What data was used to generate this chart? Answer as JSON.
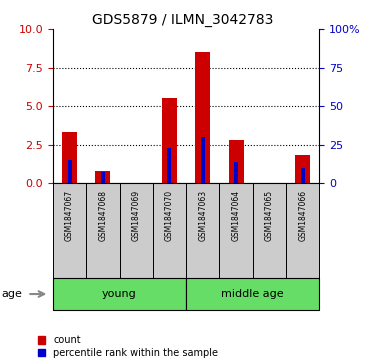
{
  "title": "GDS5879 / ILMN_3042783",
  "samples": [
    "GSM1847067",
    "GSM1847068",
    "GSM1847069",
    "GSM1847070",
    "GSM1847063",
    "GSM1847064",
    "GSM1847065",
    "GSM1847066"
  ],
  "count_values": [
    3.35,
    0.82,
    0.0,
    5.55,
    8.5,
    2.82,
    0.0,
    1.82
  ],
  "percentile_values_scaled": [
    1.5,
    0.75,
    0.0,
    2.3,
    3.0,
    1.4,
    0.0,
    1.0
  ],
  "left_ylim": [
    0,
    10
  ],
  "left_yticks": [
    0,
    2.5,
    5,
    7.5,
    10
  ],
  "right_yticklabels": [
    "0",
    "25",
    "50",
    "75",
    "100%"
  ],
  "groups": [
    {
      "label": "young",
      "start": 0,
      "end": 3
    },
    {
      "label": "middle age",
      "start": 4,
      "end": 7
    }
  ],
  "bar_color_count": "#cc0000",
  "bar_color_percentile": "#0000cc",
  "left_axis_color": "#cc0000",
  "right_axis_color": "#0000cc",
  "sample_box_color": "#cccccc",
  "group_color": "#66dd66",
  "age_label": "age",
  "legend_count": "count",
  "legend_percentile": "percentile rank within the sample",
  "count_bar_width": 0.45,
  "pct_bar_width": 0.12
}
